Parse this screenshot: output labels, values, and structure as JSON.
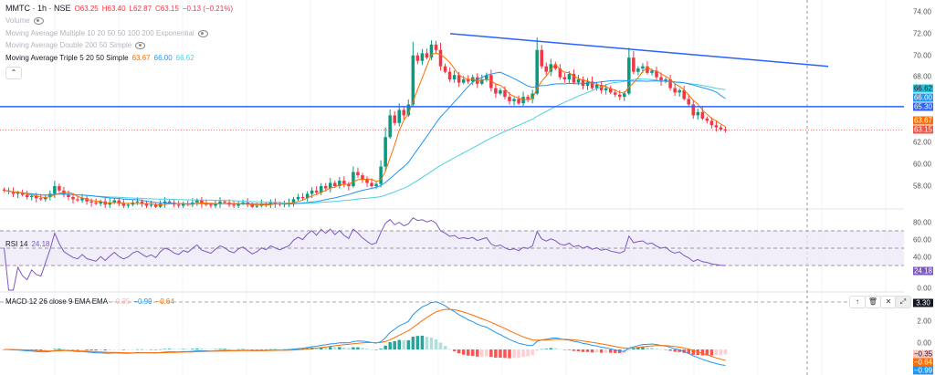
{
  "header": {
    "symbol": "MMTC · 1h · NSE",
    "o": "O63.25",
    "h": "H63.40",
    "l": "L62.87",
    "c": "C63.15",
    "chg": "−0.13 (−0.21%)"
  },
  "indicators": {
    "volume": "Volume",
    "ma_multi": "Moving Average Multiple 10 20 50 50 100 200 Exponential",
    "ma_double": "Moving Average Double 200 50 Simple",
    "ma_triple": "Moving Average Triple 5 20 50 Simple",
    "ma_vals": [
      "63.67",
      "66.00",
      "66.62"
    ],
    "collapse": "⌃"
  },
  "rsi": {
    "label": "RSI 14",
    "value": "24.18",
    "ticks": [
      "80.00",
      "60.00",
      "40.00",
      "0.00"
    ]
  },
  "macd": {
    "label": "MACD 12 26 close 9 EMA EMA",
    "vals": [
      "−0.35",
      "−0.99",
      "−0.64"
    ],
    "ticks": [
      "2.00",
      "0.00"
    ],
    "tags": [
      "3.30",
      "−0.35",
      "−0.64",
      "−0.99"
    ],
    "tools": [
      "↑",
      "🗑",
      "✕",
      "⤢"
    ]
  },
  "price_axis": {
    "ticks": [
      "74.00",
      "72.00",
      "70.00",
      "68.00",
      "62.00",
      "60.00",
      "58.00"
    ],
    "tags": [
      "66.62",
      "66.00",
      "65.30",
      "63.67",
      "63.15"
    ]
  },
  "colors": {
    "up": "#089981",
    "down": "#f23645",
    "ma5": "#ff6d00",
    "ma20": "#2196f3",
    "ma50": "#4dd0e1",
    "trend": "#2962ff",
    "rsi": "#7e57c2"
  },
  "chart_data": {
    "type": "candlestick",
    "closes": [
      57.6,
      57.5,
      57.3,
      57.4,
      57.2,
      57.0,
      57.1,
      56.9,
      56.8,
      57.0,
      57.3,
      58.0,
      57.6,
      57.2,
      57.0,
      56.8,
      56.7,
      56.9,
      56.6,
      56.5,
      56.4,
      56.6,
      56.3,
      56.5,
      56.7,
      56.4,
      56.2,
      56.3,
      56.5,
      56.6,
      56.4,
      56.2,
      56.3,
      56.1,
      56.4,
      56.6,
      56.5,
      56.3,
      56.2,
      56.4,
      56.3,
      56.5,
      56.7,
      56.4,
      56.3,
      56.2,
      56.4,
      56.6,
      56.5,
      56.3,
      56.2,
      56.4,
      56.5,
      56.3,
      56.1,
      56.2,
      56.4,
      56.3,
      56.5,
      56.4,
      56.3,
      56.4,
      56.5,
      56.8,
      57.0,
      56.9,
      57.3,
      57.6,
      57.4,
      58.0,
      57.8,
      58.3,
      58.0,
      58.5,
      58.2,
      58.0,
      59.3,
      59.0,
      58.6,
      58.3,
      58.0,
      58.2,
      59.8,
      62.5,
      64.5,
      63.8,
      65.0,
      64.5,
      65.5,
      70.0,
      69.5,
      70.2,
      69.8,
      71.0,
      70.5,
      69.0,
      68.5,
      67.8,
      68.2,
      67.5,
      67.8,
      67.6,
      68.0,
      67.4,
      67.8,
      68.2,
      67.0,
      66.5,
      66.8,
      66.2,
      65.8,
      66.0,
      65.6,
      66.2,
      66.0,
      66.5,
      70.5,
      69.0,
      68.5,
      69.2,
      68.8,
      68.0,
      67.8,
      68.3,
      67.5,
      67.8,
      67.2,
      67.6,
      67.0,
      67.3,
      66.8,
      67.0,
      66.6,
      66.4,
      66.2,
      66.5,
      69.8,
      68.5,
      68.8,
      69.0,
      68.4,
      68.6,
      68.0,
      67.6,
      67.8,
      67.0,
      66.6,
      66.8,
      66.0,
      65.5,
      64.5,
      64.8,
      64.2,
      64.0,
      63.6,
      63.4,
      63.2,
      63.15
    ],
    "horizontal_line": 65.3,
    "trendline": [
      72.0,
      69.0
    ],
    "ylim": [
      56,
      74
    ]
  }
}
